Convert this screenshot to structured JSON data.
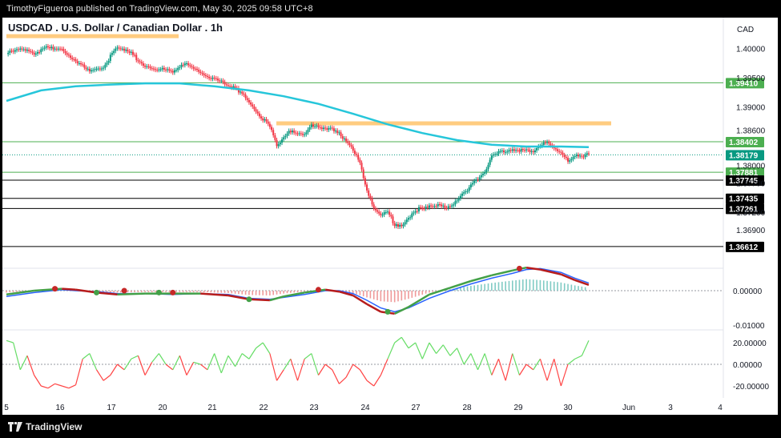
{
  "header": {
    "text": "TimothyFigueroa published on TradingView.com, May 30, 2025 09:58 UTC+8"
  },
  "title": "USDCAD . U.S. Dollar / Canadian Dollar . 1h",
  "currency": "CAD",
  "footer": {
    "brand": "TradingView"
  },
  "chart_data": {
    "type": "candlestick",
    "symbol": "USDCAD",
    "interval": "1h",
    "price_axis": {
      "ticks": [
        "1.40000",
        "1.39500",
        "1.39000",
        "1.38600",
        "1.38000",
        "1.37700",
        "1.37200",
        "1.36900"
      ],
      "range": [
        1.3635,
        1.4025
      ]
    },
    "x_ticks": [
      "5",
      "16",
      "17",
      "20",
      "21",
      "22",
      "23",
      "24",
      "27",
      "28",
      "29",
      "30",
      "Jun",
      "3",
      "4"
    ],
    "horizontal_levels": [
      {
        "price": "1.39410",
        "color": "#4caf50"
      },
      {
        "price": "1.38402",
        "color": "#4caf50"
      },
      {
        "price": "1.37881",
        "color": "#4caf50"
      },
      {
        "price": "1.37745",
        "color": "#000000"
      },
      {
        "price": "1.37435",
        "color": "#000000"
      },
      {
        "price": "1.37261",
        "color": "#000000"
      },
      {
        "price": "1.36612",
        "color": "#000000"
      }
    ],
    "current_price": {
      "price": "1.38179",
      "color": "#089981"
    },
    "resistance_zones": [
      {
        "from": "5",
        "to": "20",
        "level": 1.402,
        "color": "#ffcc80"
      },
      {
        "from": "22",
        "to": "30",
        "level": 1.3871,
        "color": "#ffcc80"
      }
    ],
    "price_path": [
      [
        0,
        1.399
      ],
      [
        4,
        1.3998
      ],
      [
        8,
        1.3992
      ],
      [
        12,
        1.4005
      ],
      [
        16,
        1.3995
      ],
      [
        20,
        1.3975
      ],
      [
        24,
        1.3964
      ],
      [
        28,
        1.397
      ],
      [
        32,
        1.4
      ],
      [
        36,
        1.399
      ],
      [
        40,
        1.397
      ],
      [
        44,
        1.3965
      ],
      [
        48,
        1.3958
      ],
      [
        52,
        1.3975
      ],
      [
        56,
        1.396
      ],
      [
        60,
        1.3948
      ],
      [
        64,
        1.3935
      ],
      [
        68,
        1.3925
      ],
      [
        72,
        1.3895
      ],
      [
        76,
        1.3865
      ],
      [
        78,
        1.3832
      ],
      [
        80,
        1.3845
      ],
      [
        82,
        1.386
      ],
      [
        86,
        1.3855
      ],
      [
        88,
        1.3872
      ],
      [
        90,
        1.3862
      ],
      [
        94,
        1.386
      ],
      [
        98,
        1.3845
      ],
      [
        100,
        1.3828
      ],
      [
        102,
        1.3808
      ],
      [
        104,
        1.3755
      ],
      [
        106,
        1.3725
      ],
      [
        108,
        1.3712
      ],
      [
        110,
        1.372
      ],
      [
        112,
        1.37
      ],
      [
        114,
        1.3698
      ],
      [
        116,
        1.3712
      ],
      [
        118,
        1.3724
      ],
      [
        120,
        1.3725
      ],
      [
        124,
        1.373
      ],
      [
        128,
        1.373
      ],
      [
        130,
        1.3742
      ],
      [
        132,
        1.3755
      ],
      [
        134,
        1.3765
      ],
      [
        136,
        1.3775
      ],
      [
        138,
        1.3785
      ],
      [
        140,
        1.3815
      ],
      [
        142,
        1.3825
      ],
      [
        146,
        1.3828
      ],
      [
        148,
        1.3825
      ],
      [
        152,
        1.3822
      ],
      [
        156,
        1.384
      ],
      [
        158,
        1.3832
      ],
      [
        160,
        1.3822
      ],
      [
        162,
        1.381
      ],
      [
        164,
        1.3815
      ],
      [
        166,
        1.3812
      ],
      [
        168,
        1.3818
      ]
    ],
    "ma_200": [
      [
        0,
        1.391
      ],
      [
        10,
        1.3928
      ],
      [
        20,
        1.3935
      ],
      [
        30,
        1.3938
      ],
      [
        40,
        1.394
      ],
      [
        50,
        1.394
      ],
      [
        60,
        1.3935
      ],
      [
        70,
        1.3928
      ],
      [
        80,
        1.3918
      ],
      [
        90,
        1.3905
      ],
      [
        100,
        1.3888
      ],
      [
        110,
        1.387
      ],
      [
        120,
        1.3855
      ],
      [
        130,
        1.3843
      ],
      [
        140,
        1.3835
      ],
      [
        150,
        1.3832
      ],
      [
        160,
        1.3832
      ],
      [
        168,
        1.3831
      ]
    ],
    "oscillator_1": {
      "axis_ticks": [
        "0.00000",
        "-0.01000"
      ],
      "line_1": [
        [
          0,
          -4
        ],
        [
          8,
          0
        ],
        [
          16,
          2
        ],
        [
          20,
          1
        ],
        [
          26,
          -2
        ],
        [
          32,
          -4
        ],
        [
          40,
          -3
        ],
        [
          48,
          -3
        ],
        [
          56,
          -3
        ],
        [
          64,
          -5
        ],
        [
          70,
          -9
        ],
        [
          76,
          -10
        ],
        [
          80,
          -6
        ],
        [
          86,
          -2
        ],
        [
          92,
          1
        ],
        [
          96,
          -1
        ],
        [
          100,
          -5
        ],
        [
          104,
          -14
        ],
        [
          108,
          -22
        ],
        [
          112,
          -24
        ],
        [
          116,
          -17
        ],
        [
          122,
          -4
        ],
        [
          128,
          3
        ],
        [
          134,
          10
        ],
        [
          140,
          16
        ],
        [
          146,
          21
        ],
        [
          150,
          24
        ],
        [
          154,
          22
        ],
        [
          160,
          17
        ],
        [
          164,
          11
        ],
        [
          168,
          6
        ]
      ],
      "line_2": [
        [
          0,
          -6
        ],
        [
          8,
          -2
        ],
        [
          16,
          1
        ],
        [
          20,
          0
        ],
        [
          26,
          -1
        ],
        [
          32,
          -3
        ],
        [
          40,
          -3
        ],
        [
          48,
          -4
        ],
        [
          56,
          -3
        ],
        [
          64,
          -4
        ],
        [
          70,
          -8
        ],
        [
          76,
          -9
        ],
        [
          80,
          -7
        ],
        [
          86,
          -4
        ],
        [
          92,
          0
        ],
        [
          96,
          0
        ],
        [
          100,
          -3
        ],
        [
          104,
          -10
        ],
        [
          108,
          -18
        ],
        [
          112,
          -22
        ],
        [
          116,
          -18
        ],
        [
          122,
          -8
        ],
        [
          128,
          0
        ],
        [
          134,
          7
        ],
        [
          140,
          13
        ],
        [
          146,
          18
        ],
        [
          150,
          22
        ],
        [
          154,
          23
        ],
        [
          160,
          19
        ],
        [
          164,
          13
        ],
        [
          168,
          8
        ]
      ],
      "crossover_points": [
        [
          14,
          2,
          "red"
        ],
        [
          26,
          -2,
          "green"
        ],
        [
          34,
          0,
          "red"
        ],
        [
          44,
          -2,
          "green"
        ],
        [
          48,
          -2,
          "red"
        ],
        [
          70,
          -9,
          "green"
        ],
        [
          90,
          1,
          "red"
        ],
        [
          110,
          -22,
          "green"
        ],
        [
          148,
          23,
          "red"
        ]
      ]
    },
    "oscillator_2": {
      "axis_ticks": [
        "20.00000",
        "0.00000",
        "-20.00000"
      ],
      "values": [
        [
          0,
          22
        ],
        [
          2,
          20
        ],
        [
          4,
          -5
        ],
        [
          6,
          8
        ],
        [
          8,
          -10
        ],
        [
          10,
          -20
        ],
        [
          12,
          -22
        ],
        [
          14,
          -18
        ],
        [
          16,
          -20
        ],
        [
          18,
          -22
        ],
        [
          20,
          -19
        ],
        [
          22,
          5
        ],
        [
          24,
          10
        ],
        [
          26,
          -5
        ],
        [
          28,
          -15
        ],
        [
          30,
          -10
        ],
        [
          32,
          0
        ],
        [
          34,
          -5
        ],
        [
          36,
          5
        ],
        [
          38,
          8
        ],
        [
          40,
          -10
        ],
        [
          42,
          2
        ],
        [
          44,
          10
        ],
        [
          46,
          0
        ],
        [
          48,
          -5
        ],
        [
          50,
          8
        ],
        [
          52,
          -10
        ],
        [
          54,
          2
        ],
        [
          56,
          0
        ],
        [
          58,
          -5
        ],
        [
          60,
          10
        ],
        [
          62,
          -8
        ],
        [
          64,
          8
        ],
        [
          66,
          -2
        ],
        [
          68,
          10
        ],
        [
          70,
          5
        ],
        [
          72,
          15
        ],
        [
          74,
          20
        ],
        [
          76,
          10
        ],
        [
          78,
          -15
        ],
        [
          80,
          -5
        ],
        [
          82,
          5
        ],
        [
          84,
          -15
        ],
        [
          86,
          5
        ],
        [
          88,
          10
        ],
        [
          90,
          -10
        ],
        [
          92,
          0
        ],
        [
          94,
          -5
        ],
        [
          96,
          -18
        ],
        [
          98,
          -12
        ],
        [
          100,
          0
        ],
        [
          102,
          -5
        ],
        [
          104,
          -15
        ],
        [
          106,
          -20
        ],
        [
          108,
          -10
        ],
        [
          110,
          5
        ],
        [
          112,
          20
        ],
        [
          114,
          25
        ],
        [
          116,
          15
        ],
        [
          118,
          20
        ],
        [
          120,
          5
        ],
        [
          122,
          20
        ],
        [
          124,
          10
        ],
        [
          126,
          18
        ],
        [
          128,
          8
        ],
        [
          130,
          15
        ],
        [
          132,
          0
        ],
        [
          134,
          10
        ],
        [
          136,
          -5
        ],
        [
          138,
          10
        ],
        [
          140,
          -10
        ],
        [
          142,
          5
        ],
        [
          144,
          -15
        ],
        [
          146,
          10
        ],
        [
          148,
          -10
        ],
        [
          150,
          0
        ],
        [
          152,
          -5
        ],
        [
          154,
          5
        ],
        [
          156,
          -15
        ],
        [
          158,
          5
        ],
        [
          160,
          -20
        ],
        [
          162,
          0
        ],
        [
          164,
          5
        ],
        [
          166,
          8
        ],
        [
          168,
          22
        ]
      ]
    }
  },
  "colors": {
    "up": "#089981",
    "down": "#f23645",
    "ma": "#26c6da",
    "level_green": "#4caf50",
    "zone": "#ffcc80",
    "macd_blue": "#2962ff",
    "macd_green": "#43a047",
    "macd_red": "#b71c1c",
    "osc_green": "#66dd66",
    "osc_red": "#ff4444"
  }
}
